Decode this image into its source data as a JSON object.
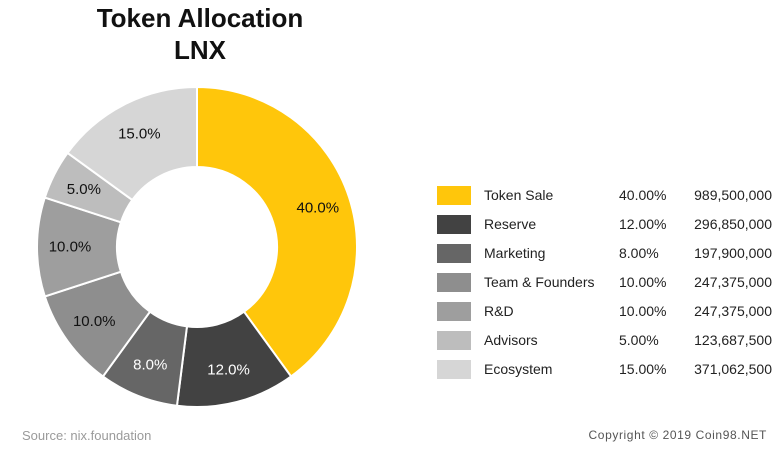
{
  "chart_data": {
    "type": "pie",
    "variant": "donut",
    "title": "Token Allocation",
    "subtitle": "LNX",
    "categories": [
      "Token Sale",
      "Reserve",
      "Marketing",
      "Team & Founders",
      "R&D",
      "Advisors",
      "Ecosystem"
    ],
    "values": [
      40.0,
      12.0,
      8.0,
      10.0,
      10.0,
      5.0,
      15.0
    ],
    "slice_labels": [
      "40.0%",
      "12.0%",
      "8.0%",
      "10.0%",
      "10.0%",
      "5.0%",
      "15.0%"
    ],
    "legend_percents": [
      "40.00%",
      "12.00%",
      "8.00%",
      "10.00%",
      "10.00%",
      "5.00%",
      "15.00%"
    ],
    "token_amounts": [
      "989,500,000",
      "296,850,000",
      "197,900,000",
      "247,375,000",
      "247,375,000",
      "123,687,500",
      "371,062,500"
    ],
    "colors": [
      "#ffc60b",
      "#424242",
      "#666666",
      "#8e8e8e",
      "#9e9e9e",
      "#bdbdbd",
      "#d6d6d6"
    ],
    "label_colors": [
      "#111111",
      "#ffffff",
      "#ffffff",
      "#111111",
      "#111111",
      "#111111",
      "#111111"
    ],
    "legend_position": "right",
    "start_angle_deg": 0,
    "direction": "clockwise"
  },
  "footer": {
    "source": "Source: nix.foundation",
    "copyright": "Copyright © 2019 Coin98.NET"
  }
}
